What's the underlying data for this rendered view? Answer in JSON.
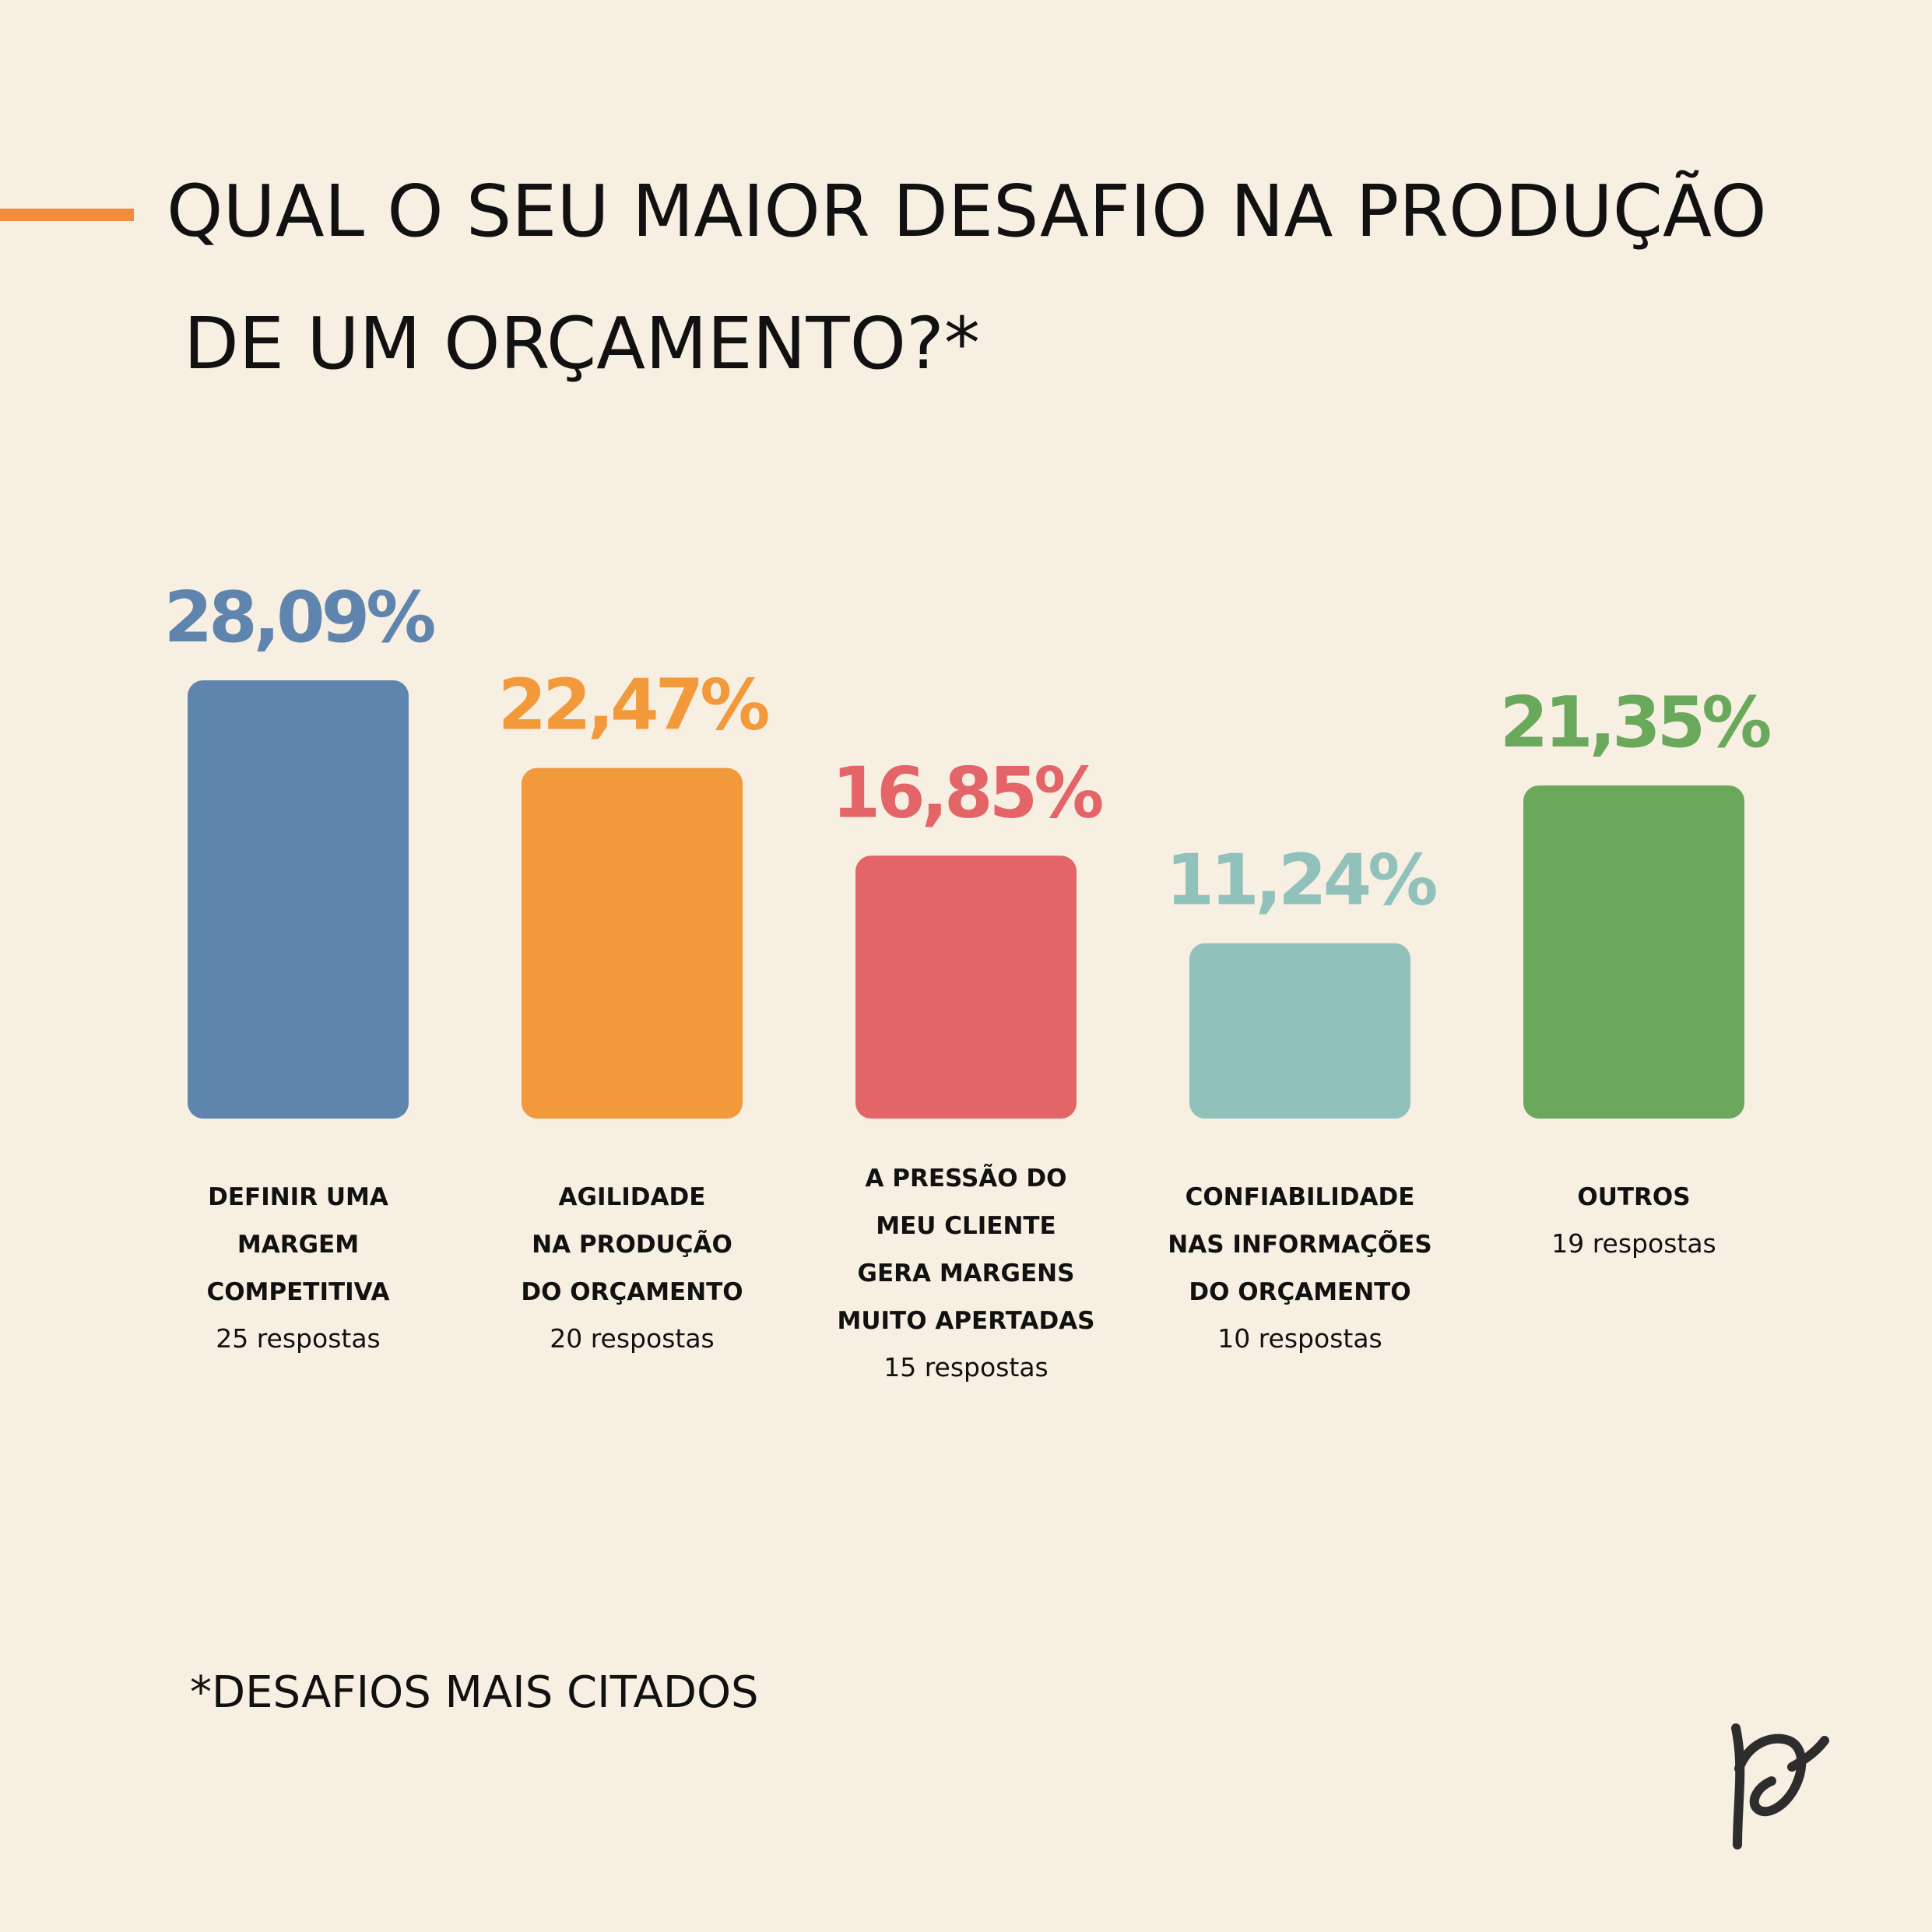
{
  "title": {
    "line1": "QUAL O SEU MAIOR DESAFIO NA PRODUÇÃO",
    "line2": "DE UM ORÇAMENTO?*"
  },
  "accent_color": "#f28c3c",
  "footnote": "*DESAFIOS MAIS CITADOS",
  "logo_icon": "handwritten-p-logo-icon",
  "chart_data": {
    "type": "bar",
    "title": "QUAL O SEU MAIOR DESAFIO NA PRODUÇÃO DE UM ORÇAMENTO?*",
    "ylim": [
      0,
      28.09
    ],
    "grid": false,
    "bars": [
      {
        "value": 28.09,
        "value_label": "28,09%",
        "label_lines": [
          "DEFINIR UMA",
          "MARGEM",
          "COMPETITIVA"
        ],
        "responses": "25 respostas",
        "color": "#5f84ad"
      },
      {
        "value": 22.47,
        "value_label": "22,47%",
        "label_lines": [
          "AGILIDADE",
          "NA PRODUÇÃO",
          "DO ORÇAMENTO"
        ],
        "responses": "20 respostas",
        "color": "#f2993b"
      },
      {
        "value": 16.85,
        "value_label": "16,85%",
        "label_lines": [
          "A PRESSÃO DO",
          "MEU CLIENTE",
          "GERA MARGENS",
          "MUITO APERTADAS"
        ],
        "responses": "15 respostas",
        "color": "#e36567"
      },
      {
        "value": 11.24,
        "value_label": "11,24%",
        "label_lines": [
          "CONFIABILIDADE",
          "NAS INFORMAÇÕES",
          "DO ORÇAMENTO"
        ],
        "responses": "10 respostas",
        "color": "#90c1bb"
      },
      {
        "value": 21.35,
        "value_label": "21,35%",
        "label_lines": [
          "OUTROS"
        ],
        "responses": "19 respostas",
        "color": "#6aa95c"
      }
    ]
  }
}
